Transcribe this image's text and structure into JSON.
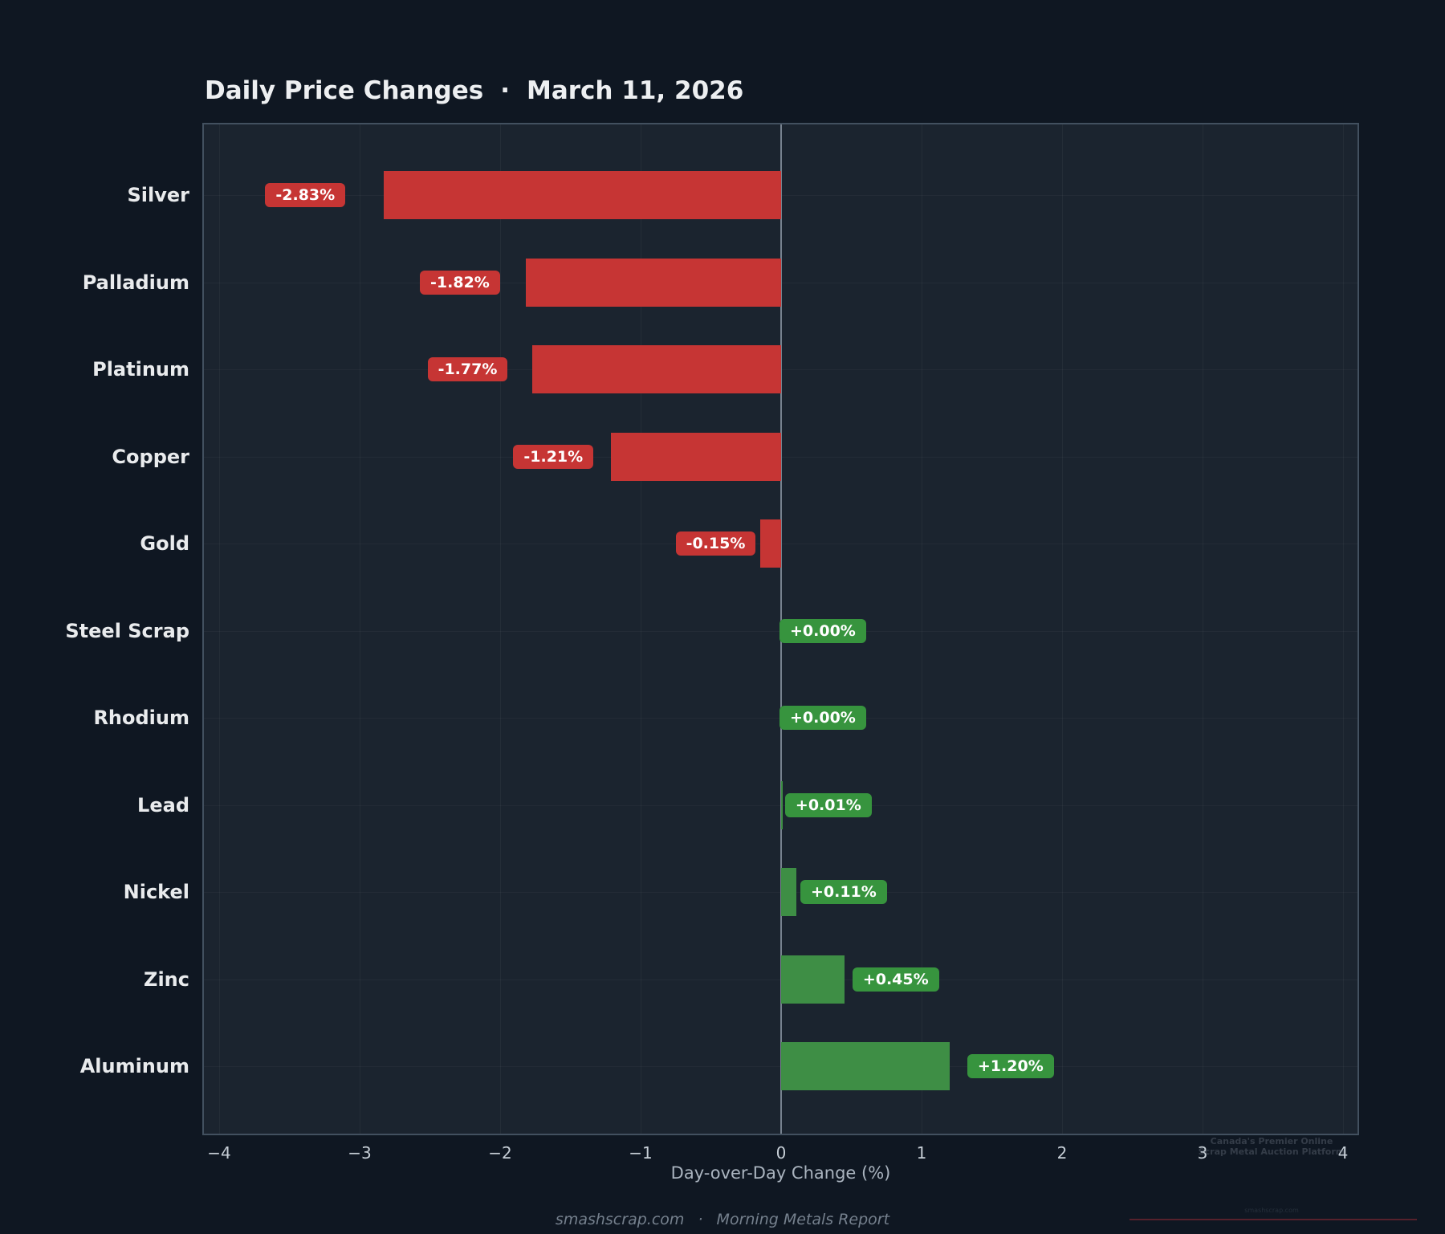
{
  "title": {
    "main": "Daily Price Changes",
    "separator": "·",
    "date": "March 11, 2026"
  },
  "chart_data": {
    "type": "bar",
    "orientation": "horizontal",
    "title": "Daily Price Changes · March 11, 2026",
    "categories": [
      "Silver",
      "Palladium",
      "Platinum",
      "Copper",
      "Gold",
      "Steel Scrap",
      "Rhodium",
      "Lead",
      "Nickel",
      "Zinc",
      "Aluminum"
    ],
    "values": [
      -2.83,
      -1.82,
      -1.77,
      -1.21,
      -0.15,
      0.0,
      0.0,
      0.01,
      0.11,
      0.45,
      1.2
    ],
    "bar_labels": [
      "-2.83%",
      "-1.82%",
      "-1.77%",
      "-1.21%",
      "-0.15%",
      "+0.00%",
      "+0.00%",
      "+0.01%",
      "+0.11%",
      "+0.45%",
      "+1.20%"
    ],
    "xlabel": "Day-over-Day Change (%)",
    "xticks": [
      -4,
      -3,
      -2,
      -1,
      0,
      1,
      2,
      3,
      4
    ],
    "xtick_labels": [
      "−4",
      "−3",
      "−2",
      "−1",
      "0",
      "1",
      "2",
      "3",
      "4"
    ],
    "xlim": [
      -4.11,
      4.11
    ],
    "grid": true,
    "legend": false,
    "colors": {
      "negative_bar": "#c63534",
      "negative_label_bg": "#c63534",
      "positive_bar": "#3e8e45",
      "positive_label_bg": "#37943e",
      "zero_line": "#77828f",
      "plot_background": "#1b242f",
      "figure_background": "#0f1722"
    }
  },
  "footer": {
    "site": "smashscrap.com",
    "separator": "·",
    "report": "Morning Metals Report"
  },
  "watermark": {
    "line1": "Canada's Premier Online",
    "line2": "Scrap Metal Auction Platform",
    "site": "smashscrap.com"
  }
}
